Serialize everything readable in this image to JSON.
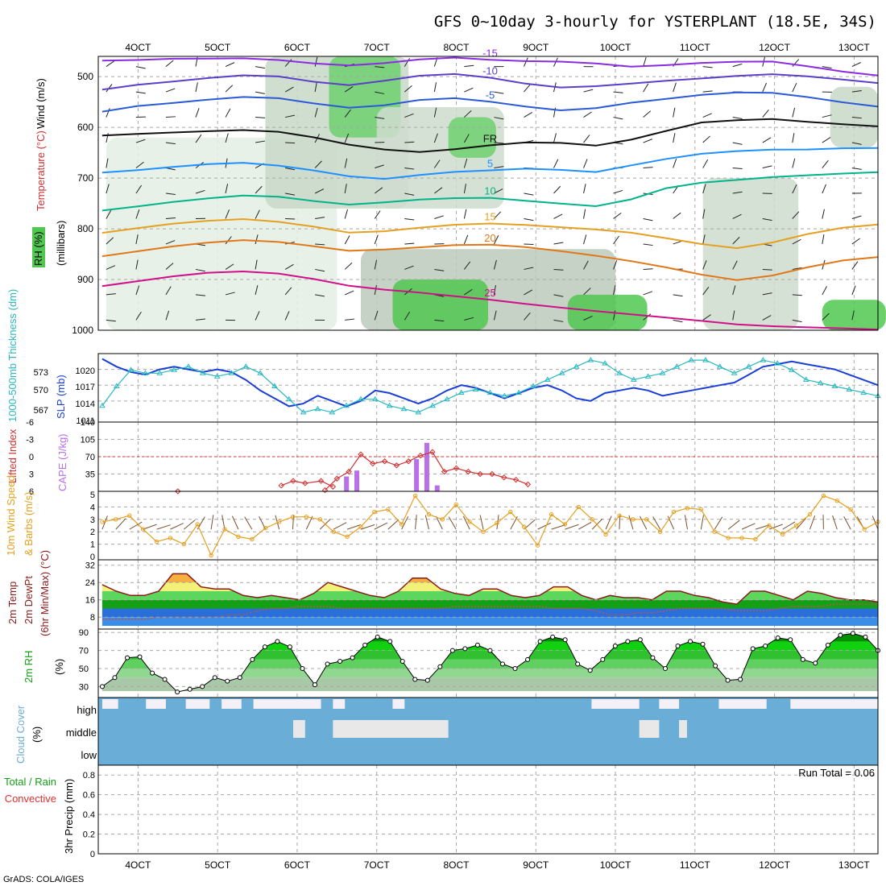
{
  "chart_data": {
    "type": "meteogram",
    "title": "GFS 0~10day 3-hourly for YSTERPLANT (18.5E, 34S)",
    "credit": "GrADS: COLA/IGES",
    "x_ticks": [
      "4OCT",
      "5OCT",
      "6OCT",
      "7OCT",
      "8OCT",
      "9OCT",
      "10OCT",
      "11OCT",
      "12OCT",
      "13OCT"
    ],
    "x_range_days": [
      3.5,
      13.3
    ],
    "panels": [
      {
        "id": "upper_air",
        "ylabels": [
          "Wind (m/s)",
          "Temperature (°C)",
          "RH (%)",
          "(millibars)"
        ],
        "yticks": [
          500,
          600,
          700,
          800,
          900,
          1000
        ],
        "ylim": [
          460,
          1000
        ],
        "temperature_contours": [
          {
            "label": "-15",
            "color": "#8a2be2",
            "p": [
              472,
              470,
              466,
              464,
              462,
              464,
              470,
              474,
              470,
              464,
              462,
              468,
              472,
              474,
              478,
              484,
              480,
              474,
              470,
              468,
              476,
              486,
              494
            ]
          },
          {
            "label": "-10",
            "color": "#5a3fc8",
            "p": [
              522,
              512,
              506,
              500,
              496,
              500,
              512,
              520,
              512,
              502,
              498,
              504,
              514,
              520,
              516,
              510,
              504,
              500,
              496,
              494,
              500,
              508,
              516
            ]
          },
          {
            "label": "-5",
            "color": "#2a5ad8",
            "p": [
              566,
              554,
              548,
              542,
              538,
              542,
              554,
              564,
              560,
              550,
              546,
              552,
              560,
              566,
              560,
              548,
              540,
              532,
              528,
              530,
              540,
              552,
              562
            ]
          },
          {
            "label": "FR",
            "color": "#111111",
            "p": [
              620,
              616,
              612,
              608,
              604,
              606,
              616,
              630,
              640,
              646,
              642,
              636,
              632,
              634,
              640,
              628,
              610,
              592,
              586,
              582,
              586,
              590,
              594
            ]
          },
          {
            "label": "5",
            "color": "#1e90ff",
            "p": [
              692,
              688,
              682,
              676,
              672,
              676,
              684,
              694,
              698,
              690,
              684,
              682,
              680,
              684,
              690,
              678,
              666,
              656,
              650,
              646,
              644,
              640,
              638
            ]
          },
          {
            "label": "10",
            "color": "#00b38a",
            "p": [
              760,
              752,
              744,
              738,
              734,
              738,
              748,
              756,
              752,
              746,
              742,
              740,
              744,
              748,
              752,
              738,
              716,
              706,
              702,
              698,
              696,
              694,
              692
            ]
          },
          {
            "label": "15",
            "color": "#e6a020",
            "p": [
              810,
              802,
              794,
              788,
              784,
              788,
              796,
              806,
              802,
              794,
              788,
              786,
              790,
              796,
              802,
              810,
              822,
              834,
              842,
              830,
              812,
              798,
              790
            ]
          },
          {
            "label": "20",
            "color": "#e0781a",
            "p": [
              852,
              844,
              836,
              830,
              826,
              830,
              838,
              846,
              842,
              836,
              830,
              828,
              832,
              840,
              850,
              862,
              876,
              892,
              904,
              896,
              880,
              866,
              858
            ]
          },
          {
            "label": "25",
            "color": "#d0108a",
            "p": [
              912,
              904,
              896,
              890,
              888,
              892,
              902,
              914,
              920,
              924,
              930,
              936,
              944,
              952,
              960,
              968,
              976,
              984,
              992,
              996,
              998,
              999,
              1000
            ]
          }
        ]
      },
      {
        "id": "slp_thickness",
        "ylabels": [
          "1000-500mb Thickness (dm)",
          "SLP (mb)"
        ],
        "left_ticks": [
          "573",
          "570",
          "567"
        ],
        "right_ticks": [
          "1020",
          "1017",
          "1014",
          "1011"
        ],
        "slp_mb": [
          1022,
          1020.5,
          1019.5,
          1019,
          1020,
          1020.5,
          1020,
          1019.5,
          1020,
          1019.5,
          1018,
          1016,
          1014.5,
          1013,
          1013.5,
          1015,
          1014,
          1013,
          1014,
          1016,
          1015.5,
          1014.5,
          1013.5,
          1014.5,
          1016,
          1017,
          1016.5,
          1015.5,
          1014.5,
          1015.5,
          1016.5,
          1017,
          1016,
          1014.5,
          1014,
          1015.5,
          1016,
          1016.5,
          1016,
          1015,
          1015.5,
          1016,
          1016.5,
          1017,
          1017.5,
          1019,
          1020.5,
          1021,
          1021.5,
          1021,
          1020.5,
          1020,
          1019,
          1018,
          1017
        ],
        "thickness_dm": [
          567,
          570,
          572.5,
          572,
          572,
          572.5,
          573,
          572,
          571.5,
          572,
          573,
          572,
          570,
          568,
          566,
          566.5,
          566,
          567,
          568,
          568,
          567,
          566.5,
          566,
          567,
          568,
          569,
          569.5,
          569,
          568.5,
          569,
          570,
          571,
          572,
          573,
          574,
          573.5,
          572,
          571,
          571.5,
          572,
          573,
          574,
          574,
          573,
          572,
          573,
          574,
          573.5,
          572.5,
          571,
          570.5,
          570,
          569.5,
          569,
          568.5
        ]
      },
      {
        "id": "lifted_cape",
        "ylabels": [
          "Lifted Index",
          "CAPE (J/kg)"
        ],
        "left_ticks": [
          "-6",
          "-3",
          "0",
          "3",
          "6"
        ],
        "right_ticks": [
          "140",
          "105",
          "70",
          "35"
        ],
        "zero_line_label": "0",
        "lifted_index": [
          {
            "t": 4.5,
            "v": 6
          },
          {
            "t": 5.8,
            "v": 5
          },
          {
            "t": 5.95,
            "v": 4.2
          },
          {
            "t": 6.1,
            "v": 4.6
          },
          {
            "t": 6.3,
            "v": 4.2
          },
          {
            "t": 6.45,
            "v": 5.2
          },
          {
            "t": 6.35,
            "v": 5.8
          },
          {
            "t": 6.5,
            "v": 3.8
          },
          {
            "t": 6.65,
            "v": 2.6
          },
          {
            "t": 6.8,
            "v": -0.4
          },
          {
            "t": 6.95,
            "v": 1.2
          },
          {
            "t": 7.1,
            "v": 0.8
          },
          {
            "t": 7.25,
            "v": 1.5
          },
          {
            "t": 7.4,
            "v": 0.8
          },
          {
            "t": 7.55,
            "v": -0.2
          },
          {
            "t": 7.7,
            "v": -0.8
          },
          {
            "t": 7.85,
            "v": 2.6
          },
          {
            "t": 8.0,
            "v": 2.0
          },
          {
            "t": 8.15,
            "v": 2.6
          },
          {
            "t": 8.3,
            "v": 3.0
          },
          {
            "t": 8.45,
            "v": 3.0
          },
          {
            "t": 8.6,
            "v": 3.6
          },
          {
            "t": 8.75,
            "v": 4.0
          },
          {
            "t": 8.9,
            "v": 4.8
          }
        ],
        "cape_bars": [
          {
            "t": 6.62,
            "v": 30
          },
          {
            "t": 6.75,
            "v": 42
          },
          {
            "t": 7.5,
            "v": 65
          },
          {
            "t": 7.63,
            "v": 98
          },
          {
            "t": 7.76,
            "v": 12
          }
        ]
      },
      {
        "id": "wind10m",
        "ylabels": [
          "10m Wind Speed",
          "& Barbs (m/s)"
        ],
        "yticks": [
          "5",
          "4",
          "3",
          "2",
          "1",
          "0"
        ],
        "speed_ms": [
          2.8,
          3.0,
          3.3,
          2.2,
          1.2,
          1.5,
          1.0,
          2.6,
          0.1,
          2.2,
          1.6,
          1.4,
          2.3,
          2.8,
          3.2,
          3.2,
          3.0,
          2.0,
          1.6,
          2.4,
          3.6,
          3.8,
          2.6,
          4.9,
          3.4,
          3.0,
          4.2,
          2.8,
          2.0,
          2.7,
          3.6,
          2.4,
          0.9,
          3.4,
          2.6,
          4.0,
          3.0,
          1.8,
          3.3,
          3.0,
          3.0,
          2.0,
          3.6,
          3.9,
          3.8,
          2.0,
          1.5,
          1.5,
          1.4,
          2.5,
          1.8,
          2.5,
          3.4,
          4.9,
          4.5,
          3.8,
          2.2,
          2.8
        ]
      },
      {
        "id": "temp2m",
        "ylabels": [
          "2m Temp",
          "2m DewPt",
          "(6hr Min/Max) (°C)"
        ],
        "yticks": [
          "32",
          "24",
          "16",
          "8"
        ],
        "temp_c": [
          23,
          20,
          18,
          18,
          20,
          28,
          28,
          22,
          21,
          21,
          18,
          17,
          18,
          17,
          16,
          19,
          24,
          22,
          20,
          18,
          17,
          20,
          26,
          26,
          21,
          19,
          18,
          21,
          21,
          18,
          17,
          18,
          22,
          22,
          18,
          16,
          18,
          17,
          17,
          16,
          20,
          20,
          18,
          17,
          15,
          14,
          20,
          20,
          18,
          16,
          20,
          19,
          17,
          16,
          16,
          15
        ],
        "dewpt_c": [
          7,
          7,
          7,
          7,
          8,
          8,
          8,
          8,
          8,
          9,
          9,
          11,
          12,
          12,
          13,
          13,
          13,
          12,
          12,
          12,
          12,
          12,
          12,
          12,
          12,
          13,
          13,
          13,
          13,
          13,
          13,
          13,
          12,
          12,
          12,
          11,
          9,
          9,
          10,
          10,
          11,
          12,
          12,
          12,
          12,
          11,
          11,
          11,
          12,
          13,
          13,
          13,
          14,
          14,
          14,
          14
        ]
      },
      {
        "id": "rh2m",
        "ylabels": [
          "2m RH",
          "(%)"
        ],
        "yticks": [
          "90",
          "70",
          "50",
          "30"
        ],
        "rh_pct": [
          30,
          40,
          62,
          63,
          45,
          38,
          24,
          27,
          30,
          40,
          36,
          40,
          60,
          74,
          80,
          74,
          50,
          32,
          55,
          58,
          62,
          76,
          85,
          80,
          58,
          38,
          37,
          52,
          70,
          72,
          76,
          70,
          55,
          50,
          60,
          80,
          85,
          82,
          55,
          48,
          60,
          75,
          80,
          82,
          62,
          50,
          75,
          80,
          77,
          53,
          37,
          38,
          72,
          75,
          84,
          82,
          60,
          56,
          76,
          87,
          89,
          85,
          70
        ]
      },
      {
        "id": "cloud_cover",
        "ylabels": [
          "Cloud Cover",
          "(%)"
        ],
        "rows": [
          "high",
          "middle",
          "low"
        ]
      },
      {
        "id": "precip",
        "ylabels": [
          "Total / Rain",
          "Convective",
          "3hr Precip (mm)"
        ],
        "yticks": [
          "0.8",
          "0.6",
          "0.4",
          "0.2",
          "0"
        ],
        "run_total_label": "Run Total = 0.06",
        "values_mm": []
      }
    ]
  }
}
